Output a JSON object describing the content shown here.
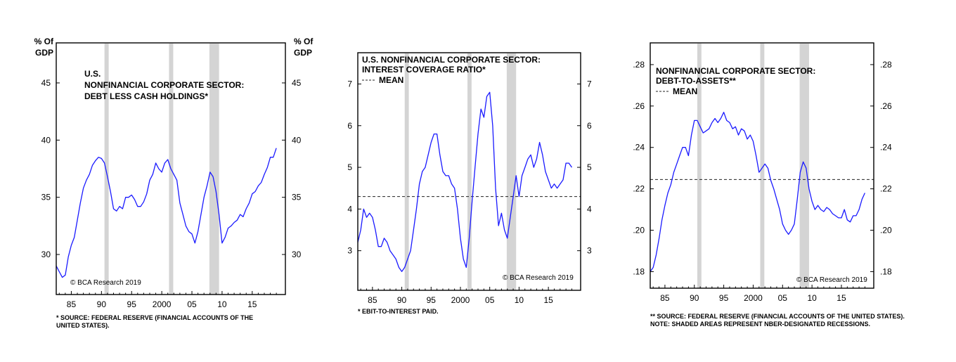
{
  "chart_data": [
    {
      "type": "line",
      "title": "U.S. NONFINANCIAL CORPORATE SECTOR: DEBT LESS CASH HOLDINGS*",
      "title_lines": [
        "U.S.",
        "NONFINANCIAL CORPORATE SECTOR:",
        "DEBT LESS CASH HOLDINGS*"
      ],
      "ylabel_lines": [
        "% Of",
        "GDP"
      ],
      "yticks": [
        30,
        35,
        40,
        45
      ],
      "ytick_labels": [
        "30",
        "35",
        "40",
        "45"
      ],
      "ylim": [
        26.5,
        48.5
      ],
      "xlim": [
        1982.5,
        2020.5
      ],
      "xticks": [
        1985,
        1990,
        1995,
        2000,
        2005,
        2010,
        2015
      ],
      "xtick_labels": [
        "85",
        "90",
        "95",
        "2000",
        "05",
        "10",
        "15"
      ],
      "recessions": [
        [
          1990.5,
          1991.2
        ],
        [
          2001.2,
          2001.9
        ],
        [
          2007.9,
          2009.5
        ]
      ],
      "mean": null,
      "credit": "© BCA Research 2019",
      "notes": [
        "*  SOURCE: FEDERAL RESERVE (FINANCIAL ACCOUNTS OF THE",
        "UNITED STATES)."
      ],
      "series": [
        {
          "name": "Debt less cash holdings (% of GDP)",
          "color": "#1a1aff",
          "x": [
            1982.5,
            1983,
            1983.5,
            1984,
            1984.5,
            1985,
            1985.5,
            1986,
            1986.5,
            1987,
            1987.5,
            1988,
            1988.5,
            1989,
            1989.5,
            1990,
            1990.5,
            1991,
            1991.5,
            1992,
            1992.5,
            1993,
            1993.5,
            1994,
            1994.5,
            1995,
            1995.5,
            1996,
            1996.5,
            1997,
            1997.5,
            1998,
            1998.5,
            1999,
            1999.5,
            2000,
            2000.5,
            2001,
            2001.5,
            2002,
            2002.5,
            2003,
            2003.5,
            2004,
            2004.5,
            2005,
            2005.5,
            2006,
            2006.5,
            2007,
            2007.5,
            2008,
            2008.5,
            2009,
            2009.5,
            2010,
            2010.5,
            2011,
            2011.5,
            2012,
            2012.5,
            2013,
            2013.5,
            2014,
            2014.5,
            2015,
            2015.5,
            2016,
            2016.5,
            2017,
            2017.5,
            2018,
            2018.5,
            2019
          ],
          "values": [
            29.0,
            28.5,
            28.0,
            28.2,
            29.8,
            30.8,
            31.5,
            33.0,
            34.5,
            35.8,
            36.5,
            37.0,
            37.8,
            38.2,
            38.5,
            38.4,
            38.0,
            36.8,
            35.5,
            34.0,
            33.8,
            34.2,
            34.0,
            35.0,
            35.0,
            35.2,
            34.8,
            34.2,
            34.2,
            34.6,
            35.3,
            36.5,
            37.0,
            38.0,
            37.5,
            37.2,
            38.0,
            38.3,
            37.5,
            37.0,
            36.5,
            34.5,
            33.5,
            32.5,
            32.0,
            31.8,
            31.0,
            32.0,
            33.5,
            35.0,
            36.0,
            37.2,
            36.8,
            35.5,
            33.5,
            31.0,
            31.5,
            32.3,
            32.5,
            32.8,
            33.0,
            33.5,
            33.3,
            34.0,
            34.5,
            35.3,
            35.5,
            36.0,
            36.3,
            37.0,
            37.6,
            38.5,
            38.5,
            39.3
          ]
        }
      ]
    },
    {
      "type": "line",
      "title": "U.S. NONFINANCIAL CORPORATE SECTOR: INTEREST COVERAGE RATIO*",
      "title_lines": [
        "U.S. NONFINANCIAL CORPORATE SECTOR:",
        "INTEREST COVERAGE RATIO*"
      ],
      "mean_legend": "MEAN",
      "yticks": [
        3,
        4,
        5,
        6,
        7
      ],
      "ytick_labels": [
        "3",
        "4",
        "5",
        "6",
        "7"
      ],
      "ylim": [
        2.05,
        7.75
      ],
      "xlim": [
        1982.5,
        2020.5
      ],
      "xticks": [
        1985,
        1990,
        1995,
        2000,
        2005,
        2010,
        2015
      ],
      "xtick_labels": [
        "85",
        "90",
        "95",
        "2000",
        "05",
        "10",
        "15"
      ],
      "recessions": [
        [
          1990.5,
          1991.2
        ],
        [
          2001.2,
          2001.9
        ],
        [
          2007.9,
          2009.5
        ]
      ],
      "mean": 4.3,
      "credit": "© BCA Research 2019",
      "notes": [
        "*  EBIT-TO-INTEREST PAID."
      ],
      "series": [
        {
          "name": "Interest coverage ratio",
          "color": "#1a1aff",
          "x": [
            1982.5,
            1983,
            1983.5,
            1984,
            1984.5,
            1985,
            1985.5,
            1986,
            1986.5,
            1987,
            1987.5,
            1988,
            1988.5,
            1989,
            1989.5,
            1990,
            1990.5,
            1991,
            1991.5,
            1992,
            1992.5,
            1993,
            1993.5,
            1994,
            1994.5,
            1995,
            1995.5,
            1996,
            1996.5,
            1997,
            1997.5,
            1998,
            1998.5,
            1999,
            1999.5,
            2000,
            2000.5,
            2001,
            2001.5,
            2002,
            2002.5,
            2003,
            2003.5,
            2004,
            2004.5,
            2005,
            2005.5,
            2006,
            2006.5,
            2007,
            2007.5,
            2008,
            2008.5,
            2009,
            2009.5,
            2010,
            2010.5,
            2011,
            2011.5,
            2012,
            2012.5,
            2013,
            2013.5,
            2014,
            2014.5,
            2015,
            2015.5,
            2016,
            2016.5,
            2017,
            2017.5,
            2018,
            2018.5,
            2019
          ],
          "values": [
            3.2,
            3.5,
            4.0,
            3.8,
            3.9,
            3.8,
            3.5,
            3.1,
            3.1,
            3.3,
            3.2,
            3.0,
            2.9,
            2.8,
            2.6,
            2.5,
            2.6,
            2.8,
            3.0,
            3.5,
            4.0,
            4.6,
            4.9,
            5.0,
            5.3,
            5.6,
            5.8,
            5.8,
            5.3,
            4.9,
            4.8,
            4.8,
            4.6,
            4.5,
            4.0,
            3.3,
            2.8,
            2.6,
            3.3,
            4.2,
            5.0,
            5.8,
            6.4,
            6.2,
            6.7,
            6.8,
            6.0,
            4.5,
            3.6,
            3.9,
            3.5,
            3.3,
            3.8,
            4.3,
            4.8,
            4.3,
            4.8,
            5.0,
            5.2,
            5.3,
            5.0,
            5.2,
            5.6,
            5.3,
            4.9,
            4.7,
            4.5,
            4.6,
            4.5,
            4.6,
            4.7,
            5.1,
            5.1,
            5.0
          ]
        }
      ]
    },
    {
      "type": "line",
      "title": "NONFINANCIAL CORPORATE SECTOR: DEBT-TO-ASSETS**",
      "title_lines": [
        "NONFINANCIAL CORPORATE SECTOR:",
        "DEBT-TO-ASSETS**"
      ],
      "mean_legend": "MEAN",
      "yticks": [
        0.18,
        0.2,
        0.22,
        0.24,
        0.26,
        0.28
      ],
      "ytick_labels": [
        ".18",
        ".20",
        ".22",
        ".24",
        ".26",
        ".28"
      ],
      "ylim": [
        0.172,
        0.2905
      ],
      "xlim": [
        1982.5,
        2020.5
      ],
      "xticks": [
        1985,
        1990,
        1995,
        2000,
        2005,
        2010,
        2015
      ],
      "xtick_labels": [
        "85",
        "90",
        "95",
        "2000",
        "05",
        "10",
        "15"
      ],
      "recessions": [
        [
          1990.5,
          1991.2
        ],
        [
          2001.2,
          2001.9
        ],
        [
          2007.9,
          2009.5
        ]
      ],
      "mean": 0.2245,
      "credit": "© BCA Research 2019",
      "notes": [
        "** SOURCE: FEDERAL RESERVE (FINANCIAL ACCOUNTS OF THE UNITED STATES).",
        "NOTE: SHADED AREAS REPRESENT NBER-DESIGNATED RECESSIONS."
      ],
      "series": [
        {
          "name": "Debt-to-assets",
          "color": "#1a1aff",
          "x": [
            1982.5,
            1983,
            1983.5,
            1984,
            1984.5,
            1985,
            1985.5,
            1986,
            1986.5,
            1987,
            1987.5,
            1988,
            1988.5,
            1989,
            1989.5,
            1990,
            1990.5,
            1991,
            1991.5,
            1992,
            1992.5,
            1993,
            1993.5,
            1994,
            1994.5,
            1995,
            1995.5,
            1996,
            1996.5,
            1997,
            1997.5,
            1998,
            1998.5,
            1999,
            1999.5,
            2000,
            2000.5,
            2001,
            2001.5,
            2002,
            2002.5,
            2003,
            2003.5,
            2004,
            2004.5,
            2005,
            2005.5,
            2006,
            2006.5,
            2007,
            2007.5,
            2008,
            2008.5,
            2009,
            2009.5,
            2010,
            2010.5,
            2011,
            2011.5,
            2012,
            2012.5,
            2013,
            2013.5,
            2014,
            2014.5,
            2015,
            2015.5,
            2016,
            2016.5,
            2017,
            2017.5,
            2018,
            2018.5,
            2019
          ],
          "values": [
            0.18,
            0.182,
            0.188,
            0.196,
            0.205,
            0.212,
            0.218,
            0.222,
            0.228,
            0.232,
            0.236,
            0.24,
            0.24,
            0.236,
            0.246,
            0.253,
            0.253,
            0.25,
            0.247,
            0.248,
            0.249,
            0.252,
            0.254,
            0.252,
            0.254,
            0.257,
            0.253,
            0.252,
            0.249,
            0.25,
            0.246,
            0.249,
            0.248,
            0.244,
            0.246,
            0.243,
            0.236,
            0.228,
            0.23,
            0.232,
            0.23,
            0.224,
            0.22,
            0.215,
            0.21,
            0.203,
            0.2,
            0.198,
            0.2,
            0.203,
            0.215,
            0.228,
            0.233,
            0.23,
            0.22,
            0.214,
            0.21,
            0.212,
            0.21,
            0.209,
            0.211,
            0.21,
            0.208,
            0.207,
            0.206,
            0.206,
            0.21,
            0.205,
            0.204,
            0.207,
            0.207,
            0.21,
            0.215,
            0.218
          ]
        }
      ]
    }
  ]
}
